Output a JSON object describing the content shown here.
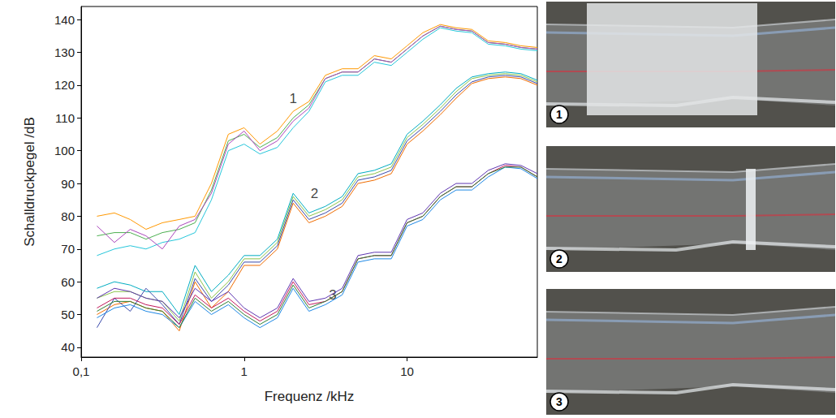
{
  "chart_data": {
    "type": "line",
    "x_label": "Frequenz /kHz",
    "y_label": "Schalldruckpegel /dB",
    "log": "x",
    "grid": false,
    "xlim": [
      0.1,
      63
    ],
    "xticks": [
      {
        "value": 0.1,
        "label": "0,1"
      },
      1,
      10
    ],
    "ylim": [
      37,
      144
    ],
    "yticks": [
      40,
      50,
      60,
      70,
      80,
      90,
      100,
      110,
      120,
      130,
      140
    ],
    "x": [
      0.125,
      0.16,
      0.2,
      0.25,
      0.315,
      0.4,
      0.5,
      0.63,
      0.8,
      1,
      1.25,
      1.6,
      2,
      2.5,
      3.15,
      4,
      5,
      6.3,
      8,
      10,
      12.5,
      16,
      20,
      25,
      31.5,
      40,
      50,
      63
    ],
    "series": [
      {
        "color": "#4caf50",
        "values": [
          74,
          75,
          75,
          73,
          75,
          76,
          78,
          88,
          103,
          105,
          101,
          104,
          110,
          114,
          122,
          124,
          124,
          128,
          127,
          131,
          135,
          138,
          137,
          136.5,
          133,
          132.5,
          131.5,
          131
        ]
      },
      {
        "color": "#ff9800",
        "values": [
          80,
          81,
          79,
          76,
          78,
          79,
          80,
          90,
          105,
          107,
          102,
          106,
          112,
          115,
          123,
          125,
          125,
          129,
          128,
          132,
          136,
          138.5,
          137.5,
          137,
          133.5,
          133,
          132,
          131.5
        ]
      },
      {
        "color": "#26c6da",
        "values": [
          68,
          70,
          71,
          70,
          72,
          73,
          75,
          85,
          100,
          102,
          99,
          101,
          107,
          112,
          121,
          123,
          123,
          127,
          126,
          130,
          134,
          137.5,
          136.5,
          136,
          132.5,
          132,
          131,
          130.5
        ]
      },
      {
        "color": "#ab47bc",
        "values": [
          77,
          72,
          76,
          74,
          70,
          77,
          79,
          87,
          102,
          106,
          100,
          103,
          109,
          113,
          122,
          124,
          124,
          128,
          127,
          131,
          135,
          138,
          137,
          136.5,
          133,
          132.5,
          131.5,
          131
        ]
      },
      {
        "color": "#8bc34a",
        "values": [
          55,
          57,
          57,
          55,
          54,
          48,
          63,
          55,
          60,
          67,
          67,
          72,
          86,
          80,
          82,
          85,
          92,
          93,
          95,
          104,
          108,
          113,
          118,
          122,
          123,
          123.5,
          123,
          121
        ]
      },
      {
        "color": "#00acc1",
        "values": [
          58,
          60,
          59,
          57,
          57,
          50,
          65,
          57,
          62,
          68,
          68,
          73,
          87,
          81,
          83,
          86,
          93,
          94,
          96,
          105,
          109,
          114,
          119,
          122.5,
          123.5,
          124,
          123.5,
          121.5
        ]
      },
      {
        "color": "#ef6c00",
        "values": [
          50,
          53,
          54,
          52,
          51,
          45,
          60,
          52,
          57,
          65,
          65,
          70,
          84,
          78,
          80,
          83,
          90,
          91,
          93,
          102,
          106,
          111,
          116,
          120.5,
          122,
          122.5,
          122,
          120
        ]
      },
      {
        "color": "#3949ab",
        "values": [
          46,
          55,
          51,
          58,
          53,
          47,
          61,
          54,
          59,
          66,
          66,
          71,
          85,
          79,
          81,
          84,
          91,
          92,
          94,
          103,
          107,
          112,
          117,
          121,
          122.5,
          123,
          122.5,
          120.5
        ]
      },
      {
        "color": "#c2185b",
        "values": [
          52,
          55,
          55,
          53,
          52,
          47,
          56,
          52,
          55,
          51,
          48,
          51,
          60,
          53,
          54,
          57,
          67,
          68,
          68,
          78,
          80,
          86,
          89,
          89,
          93,
          95.5,
          95,
          92
        ]
      },
      {
        "color": "#5e35b1",
        "values": [
          55,
          58,
          57,
          55,
          54,
          49,
          58,
          54,
          57,
          52,
          49,
          52,
          61,
          54,
          55,
          58,
          68,
          69,
          69,
          79,
          81,
          87,
          90,
          90,
          94,
          96,
          95.5,
          93
        ]
      },
      {
        "color": "#1e88e5",
        "values": [
          49,
          52,
          53,
          51,
          50,
          46,
          54,
          50,
          53,
          49,
          46,
          49,
          58,
          51,
          53,
          56,
          66,
          67,
          67,
          77,
          79,
          85,
          88,
          88,
          92,
          95,
          94.5,
          91.5
        ]
      },
      {
        "color": "#2e7d32",
        "values": [
          51,
          54,
          54,
          52,
          51,
          46,
          55,
          51,
          54,
          50,
          47,
          50,
          59,
          52,
          54,
          57,
          67,
          68,
          68,
          78,
          80,
          86,
          89,
          89,
          93,
          95,
          95,
          92
        ]
      }
    ],
    "annotations": [
      {
        "text": "1",
        "x": 2.0,
        "y": 116
      },
      {
        "text": "2",
        "x": 2.7,
        "y": 87
      },
      {
        "text": "3",
        "x": 3.5,
        "y": 56
      }
    ]
  },
  "photo_labels": [
    "1",
    "2",
    "3"
  ]
}
